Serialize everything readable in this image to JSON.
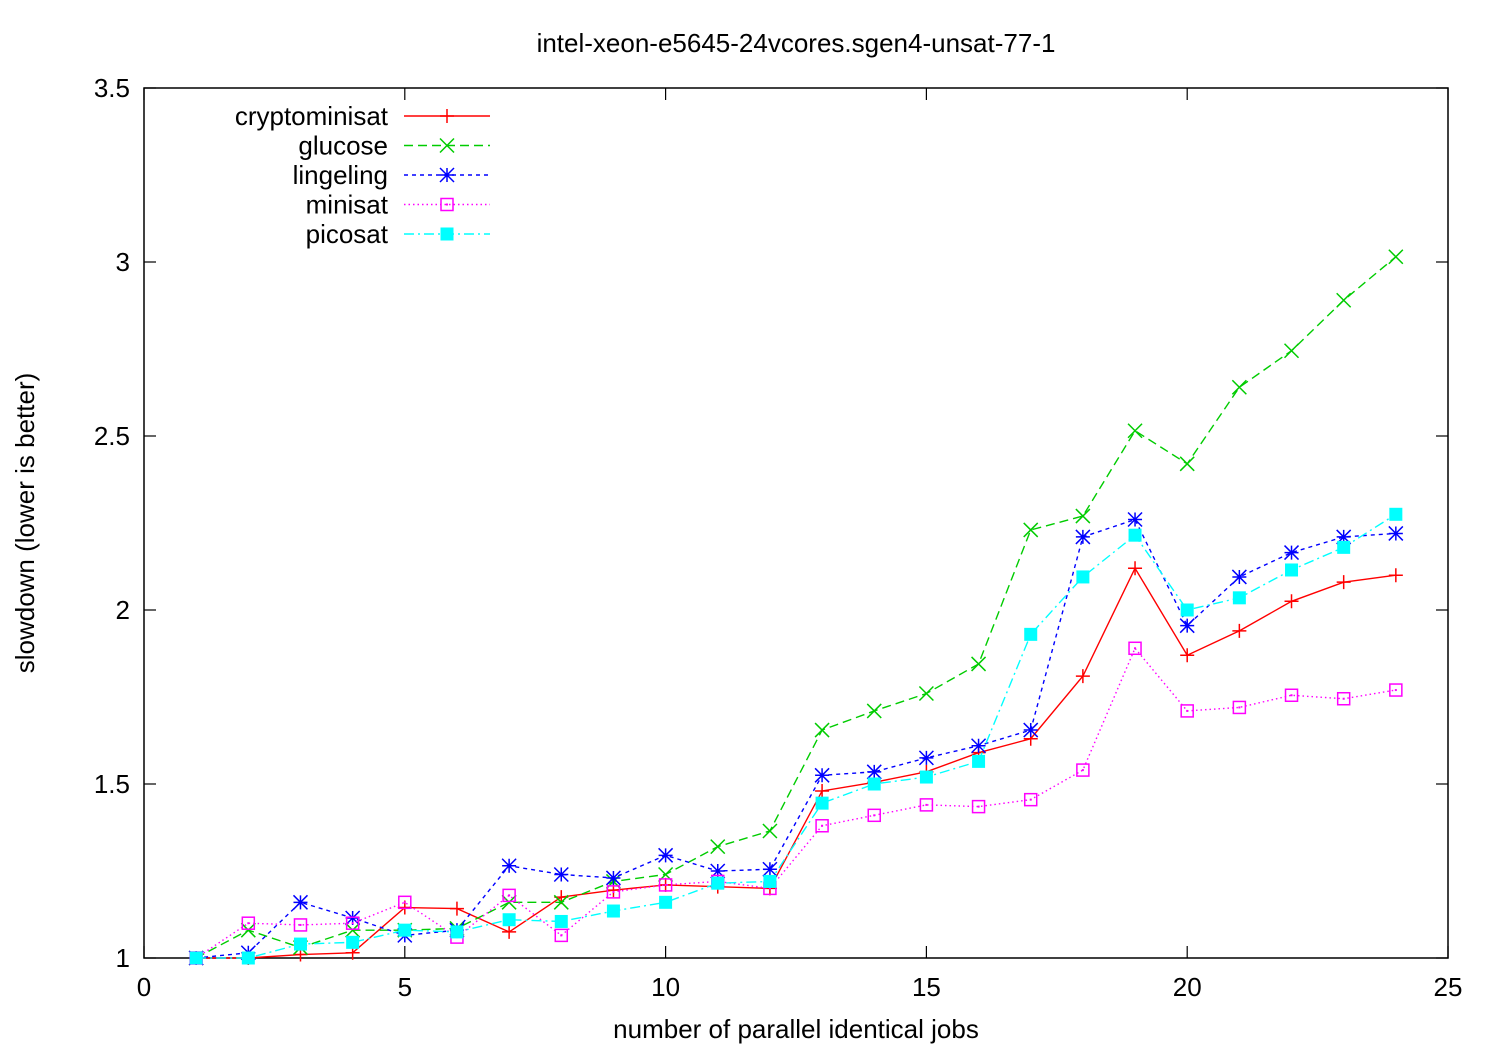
{
  "chart_data": {
    "type": "line",
    "title": "intel-xeon-e5645-24vcores.sgen4-unsat-77-1",
    "xlabel": "number of parallel identical jobs",
    "ylabel": "slowdown (lower is better)",
    "xlim": [
      0,
      25
    ],
    "ylim": [
      1,
      3.5
    ],
    "xticks": [
      "0",
      "5",
      "10",
      "15",
      "20",
      "25"
    ],
    "yticks": [
      "1",
      "1.5",
      "2",
      "2.5",
      "3",
      "3.5"
    ],
    "grid": false,
    "legend_position": "top-left",
    "x": [
      1,
      2,
      3,
      4,
      5,
      6,
      7,
      8,
      9,
      10,
      11,
      12,
      13,
      14,
      15,
      16,
      17,
      18,
      19,
      20,
      21,
      22,
      23,
      24
    ],
    "series": [
      {
        "name": "cryptominisat",
        "color": "#ff0000",
        "dash": "solid",
        "marker": "plus",
        "values": [
          1.0,
          1.0,
          1.01,
          1.015,
          1.145,
          1.142,
          1.075,
          1.175,
          1.195,
          1.21,
          1.205,
          1.2,
          1.48,
          1.505,
          1.535,
          1.59,
          1.63,
          1.81,
          2.12,
          1.87,
          1.94,
          2.025,
          2.08,
          2.1
        ]
      },
      {
        "name": "glucose",
        "color": "#00cc00",
        "dash": "dashed",
        "marker": "cross",
        "values": [
          1.0,
          1.08,
          1.03,
          1.08,
          1.08,
          1.085,
          1.16,
          1.16,
          1.22,
          1.24,
          1.32,
          1.365,
          1.655,
          1.71,
          1.76,
          1.845,
          2.23,
          2.27,
          2.515,
          2.42,
          2.64,
          2.745,
          2.89,
          3.015
        ]
      },
      {
        "name": "lingeling",
        "color": "#0000ff",
        "dash": "short-dashed",
        "marker": "star",
        "values": [
          1.0,
          1.015,
          1.16,
          1.115,
          1.065,
          1.08,
          1.265,
          1.24,
          1.23,
          1.295,
          1.25,
          1.255,
          1.525,
          1.535,
          1.575,
          1.61,
          1.655,
          2.21,
          2.26,
          1.955,
          2.095,
          2.165,
          2.21,
          2.22
        ]
      },
      {
        "name": "minisat",
        "color": "#ff00ff",
        "dash": "dotted",
        "marker": "open-square",
        "values": [
          1.0,
          1.1,
          1.095,
          1.1,
          1.16,
          1.06,
          1.18,
          1.065,
          1.19,
          1.21,
          1.22,
          1.2,
          1.38,
          1.41,
          1.44,
          1.435,
          1.455,
          1.54,
          1.89,
          1.71,
          1.72,
          1.755,
          1.745,
          1.77
        ]
      },
      {
        "name": "picosat",
        "color": "#00ffff",
        "dash": "dash-dot",
        "marker": "filled-square",
        "values": [
          1.0,
          1.0,
          1.04,
          1.045,
          1.08,
          1.075,
          1.11,
          1.105,
          1.135,
          1.16,
          1.215,
          1.22,
          1.445,
          1.5,
          1.52,
          1.565,
          1.93,
          2.095,
          2.215,
          2.0,
          2.035,
          2.115,
          2.18,
          2.275
        ]
      }
    ]
  }
}
